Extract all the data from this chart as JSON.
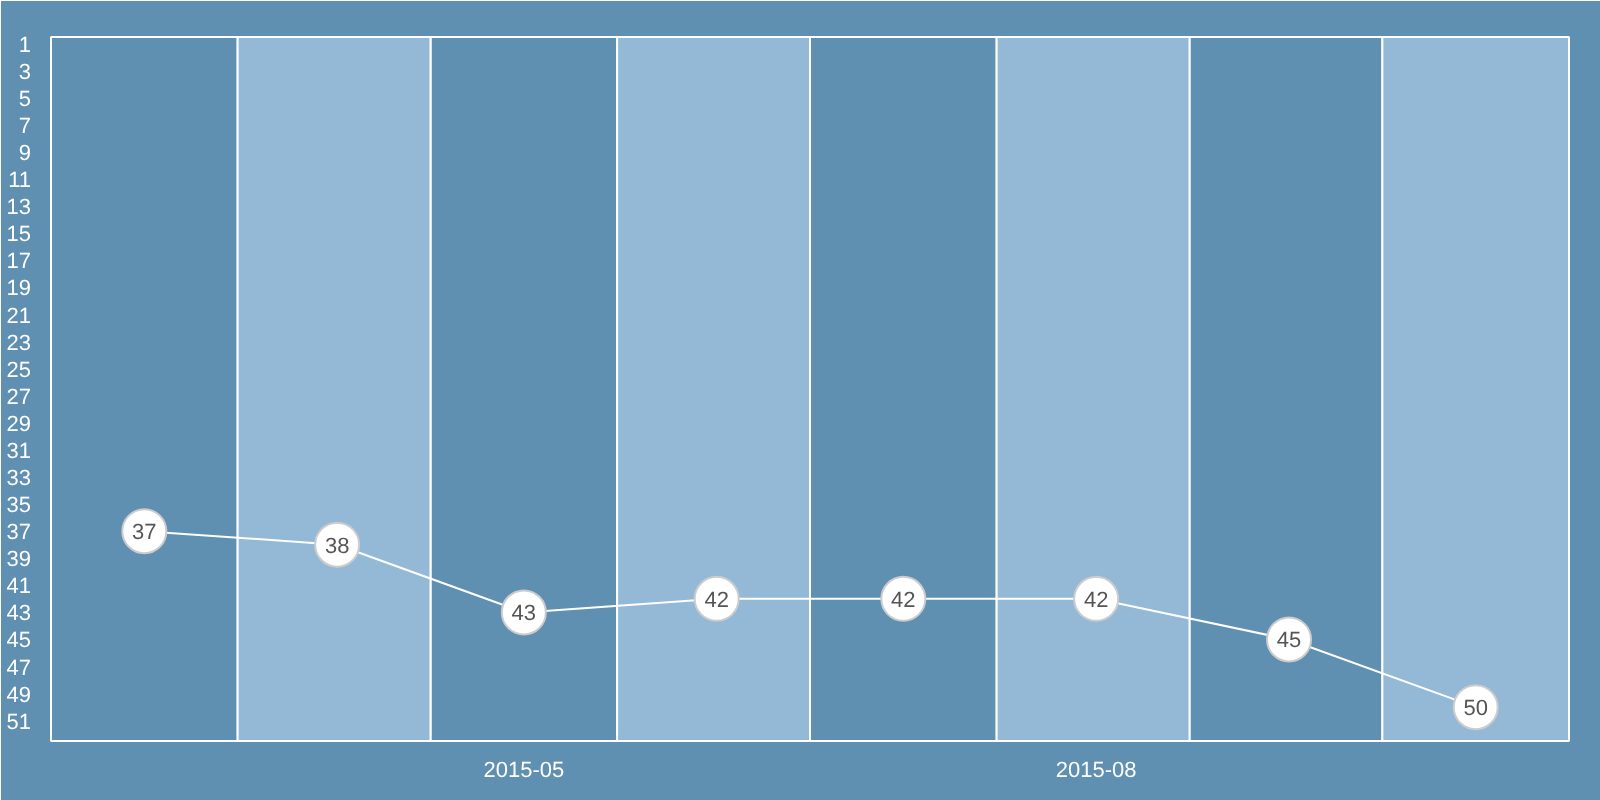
{
  "chart_data": {
    "type": "line",
    "x": [
      "2015-03",
      "2015-04",
      "2015-05",
      "2015-06",
      "2015-07",
      "2015-08",
      "2015-09",
      "2015-10"
    ],
    "xlim": [
      "2015-02-14",
      "2015-10-16"
    ],
    "xticks": [
      "2015-05",
      "2015-08"
    ],
    "series": [
      {
        "color": "#ffffff",
        "values": [
          37,
          38,
          43,
          42,
          42,
          42,
          45,
          50
        ]
      }
    ],
    "ylim": [
      52.5,
      0.5
    ],
    "yticks": [
      1,
      3,
      5,
      7,
      9,
      11,
      13,
      15,
      17,
      19,
      21,
      23,
      25,
      27,
      29,
      31,
      33,
      35,
      37,
      39,
      41,
      43,
      45,
      47,
      49,
      51
    ],
    "bands": [
      {
        "axis": "x",
        "from": "2015-02-14",
        "to": "2015-03-16",
        "color": "#5f8fb1"
      },
      {
        "axis": "x",
        "from": "2015-04-16",
        "to": "2015-05-16",
        "color": "#5f8fb1"
      },
      {
        "axis": "x",
        "from": "2015-06-16",
        "to": "2015-07-16",
        "color": "#5f8fb1"
      },
      {
        "axis": "x",
        "from": "2015-08-16",
        "to": "2015-09-16",
        "color": "#5f8fb1"
      },
      {
        "axis": "x",
        "from": "2015-03-16",
        "to": "2015-04-16",
        "color": "#93b9d6"
      },
      {
        "axis": "x",
        "from": "2015-05-16",
        "to": "2015-06-16",
        "color": "#93b9d6"
      },
      {
        "axis": "x",
        "from": "2015-07-16",
        "to": "2015-08-16",
        "color": "#93b9d6"
      },
      {
        "axis": "x",
        "from": "2015-09-16",
        "to": "2015-10-16",
        "color": "#93b9d6"
      }
    ],
    "marker": "circle",
    "line_style": "solid",
    "data_labels": true
  }
}
